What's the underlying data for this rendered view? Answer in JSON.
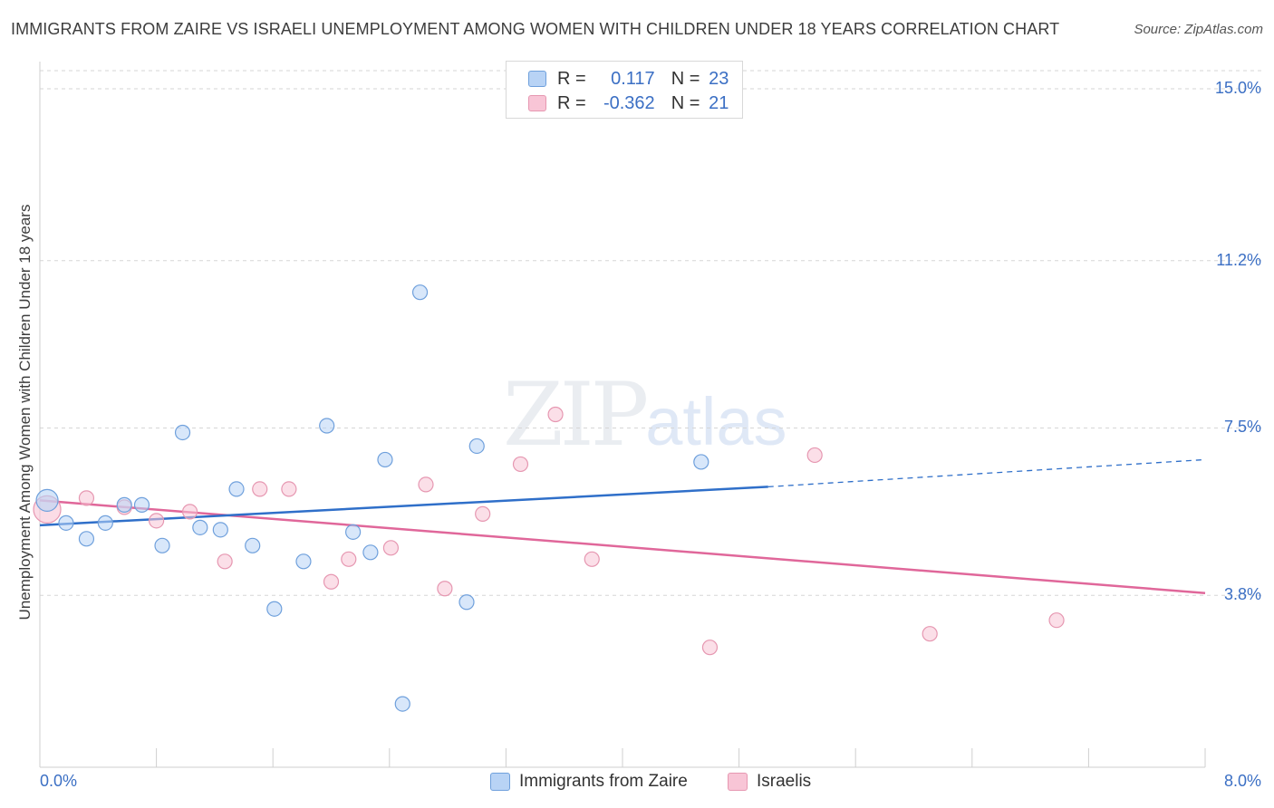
{
  "header": {
    "title": "IMMIGRANTS FROM ZAIRE VS ISRAELI UNEMPLOYMENT AMONG WOMEN WITH CHILDREN UNDER 18 YEARS CORRELATION CHART",
    "source": "Source: ZipAtlas.com"
  },
  "watermark": {
    "zip": "ZIP",
    "atlas": "atlas"
  },
  "legend": {
    "rows": [
      {
        "r_label": "R =",
        "r_value": "0.117",
        "n_label": "N =",
        "n_value": "23",
        "color": "#b8d3f5"
      },
      {
        "r_label": "R =",
        "r_value": "-0.362",
        "n_label": "N =",
        "n_value": "21",
        "color": "#f8c5d6"
      }
    ]
  },
  "bottom_legend": {
    "zaire": "Immigrants from Zaire",
    "israelis": "Israelis"
  },
  "colors": {
    "blue_fill": "#b8d3f5",
    "blue_stroke": "#6fa0dc",
    "blue_line": "#2f6fc9",
    "pink_fill": "#f8c5d6",
    "pink_stroke": "#e697b1",
    "pink_line": "#e0679a",
    "grid": "#d6d6d6"
  },
  "chart_data": {
    "type": "scatter",
    "title": "IMMIGRANTS FROM ZAIRE VS ISRAELI UNEMPLOYMENT AMONG WOMEN WITH CHILDREN UNDER 18 YEARS CORRELATION CHART",
    "xlabel": "",
    "ylabel": "Unemployment Among Women with Children Under 18 years",
    "xlim": [
      0,
      8
    ],
    "ylim": [
      0,
      15.4
    ],
    "x_tick_labels": [
      "0.0%",
      "8.0%"
    ],
    "y_ticks": [
      3.8,
      7.5,
      11.2,
      15.0
    ],
    "y_tick_labels": [
      "3.8%",
      "7.5%",
      "11.2%",
      "15.0%"
    ],
    "grid": true,
    "legend_position": "top-center",
    "series": [
      {
        "name": "Immigrants from Zaire",
        "color": "#b8d3f5",
        "points": [
          [
            0.05,
            5.9
          ],
          [
            0.18,
            5.4
          ],
          [
            0.32,
            5.05
          ],
          [
            0.45,
            5.4
          ],
          [
            0.58,
            5.8
          ],
          [
            0.7,
            5.8
          ],
          [
            0.84,
            4.9
          ],
          [
            0.98,
            7.4
          ],
          [
            1.1,
            5.3
          ],
          [
            1.24,
            5.25
          ],
          [
            1.35,
            6.15
          ],
          [
            1.46,
            4.9
          ],
          [
            1.61,
            3.5
          ],
          [
            1.81,
            4.55
          ],
          [
            1.97,
            7.55
          ],
          [
            2.15,
            5.2
          ],
          [
            2.27,
            4.75
          ],
          [
            2.37,
            6.8
          ],
          [
            2.49,
            1.4
          ],
          [
            2.61,
            10.5
          ],
          [
            2.93,
            3.65
          ],
          [
            3.0,
            7.1
          ],
          [
            4.54,
            6.75
          ]
        ],
        "trend": {
          "x": [
            0.0,
            5.0
          ],
          "y": [
            5.35,
            6.2
          ],
          "dashed_to": [
            8.0,
            6.8
          ]
        }
      },
      {
        "name": "Israelis",
        "color": "#f8c5d6",
        "points": [
          [
            0.05,
            5.7
          ],
          [
            0.32,
            5.95
          ],
          [
            0.58,
            5.75
          ],
          [
            0.8,
            5.45
          ],
          [
            1.03,
            5.65
          ],
          [
            1.27,
            4.55
          ],
          [
            1.51,
            6.15
          ],
          [
            1.71,
            6.15
          ],
          [
            2.0,
            4.1
          ],
          [
            2.12,
            4.6
          ],
          [
            2.41,
            4.85
          ],
          [
            2.65,
            6.25
          ],
          [
            2.78,
            3.95
          ],
          [
            3.04,
            5.6
          ],
          [
            3.3,
            6.7
          ],
          [
            3.54,
            7.8
          ],
          [
            3.79,
            4.6
          ],
          [
            4.6,
            2.65
          ],
          [
            5.32,
            6.9
          ],
          [
            6.11,
            2.95
          ],
          [
            6.98,
            3.25
          ]
        ],
        "trend": {
          "x": [
            0.0,
            8.0
          ],
          "y": [
            5.9,
            3.85
          ]
        }
      }
    ]
  }
}
